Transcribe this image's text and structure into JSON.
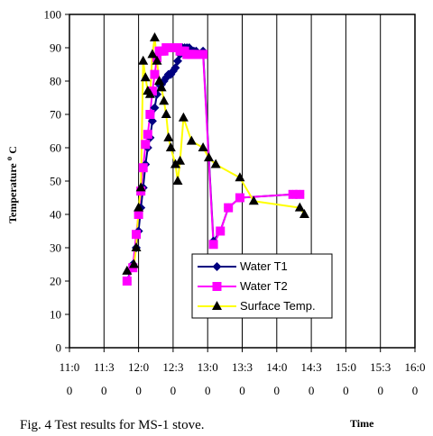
{
  "chart_data": {
    "type": "line",
    "caption": "Fig. 4 Test results for MS-1 stove.",
    "xlabel": "Time",
    "ylabel": "Temperature",
    "ylabel_sup": "o",
    "ylabel_unit": "C",
    "ylim": [
      0,
      100
    ],
    "yticks": [
      0,
      10,
      20,
      30,
      40,
      50,
      60,
      70,
      80,
      90,
      100
    ],
    "xlim": [
      "11:00",
      "16:00"
    ],
    "xtick_labels": [
      "11:00",
      "11:30",
      "12:00",
      "12:30",
      "13:00",
      "13:30",
      "14:00",
      "14:30",
      "15:00",
      "15:30",
      "16:00"
    ],
    "xtick_line1": [
      "11:0",
      "11:3",
      "12:0",
      "12:3",
      "13:0",
      "13:3",
      "14:0",
      "14:3",
      "15:0",
      "15:3",
      "16:0"
    ],
    "xtick_line2": [
      "0",
      "0",
      "0",
      "0",
      "0",
      "0",
      "0",
      "0",
      "0",
      "0",
      "0"
    ],
    "grid": "vertical",
    "legend_position": "lower-right",
    "series": [
      {
        "name": "Water T1",
        "color": "#000080",
        "marker": "diamond",
        "x": [
          "11:50",
          "11:55",
          "11:58",
          "12:00",
          "12:02",
          "12:04",
          "12:06",
          "12:08",
          "12:10",
          "12:12",
          "12:14",
          "12:16",
          "12:18",
          "12:20",
          "12:22",
          "12:24",
          "12:26",
          "12:28",
          "12:30",
          "12:32",
          "12:34",
          "12:36",
          "12:38",
          "12:40",
          "12:42",
          "12:44",
          "12:46",
          "12:48",
          "12:50",
          "12:56",
          "13:05",
          "13:11",
          "13:18",
          "13:28",
          "14:14",
          "14:20"
        ],
        "values": [
          20,
          25,
          30,
          35,
          42,
          48,
          55,
          60,
          63,
          68,
          72,
          76,
          79,
          79,
          80,
          81,
          82,
          82,
          83,
          84,
          86,
          88,
          90,
          90,
          90,
          90,
          89,
          89,
          89,
          89,
          32,
          35,
          42,
          45,
          46,
          46
        ]
      },
      {
        "name": "Water T2",
        "color": "#ff00ff",
        "marker": "square",
        "x": [
          "11:50",
          "11:55",
          "11:58",
          "12:00",
          "12:02",
          "12:04",
          "12:06",
          "12:08",
          "12:10",
          "12:12",
          "12:14",
          "12:16",
          "12:18",
          "12:20",
          "12:22",
          "12:24",
          "12:26",
          "12:28",
          "12:30",
          "12:32",
          "12:34",
          "12:36",
          "12:38",
          "12:40",
          "12:42",
          "12:44",
          "12:46",
          "12:48",
          "12:50",
          "12:56",
          "13:05",
          "13:11",
          "13:18",
          "13:28",
          "14:14",
          "14:20"
        ],
        "values": [
          20,
          24,
          34,
          40,
          47,
          54,
          61,
          64,
          70,
          77,
          82,
          87,
          89,
          89,
          89,
          90,
          90,
          90,
          90,
          90,
          90,
          89,
          89,
          89,
          88,
          88,
          88,
          88,
          88,
          88,
          31,
          35,
          42,
          45,
          46,
          46
        ]
      },
      {
        "name": "Surface Temp.",
        "color": "#ffff00",
        "marker": "triangle",
        "x": [
          "11:50",
          "11:56",
          "11:58",
          "12:00",
          "12:02",
          "12:04",
          "12:06",
          "12:08",
          "12:10",
          "12:12",
          "12:14",
          "12:16",
          "12:18",
          "12:20",
          "12:22",
          "12:24",
          "12:26",
          "12:28",
          "12:32",
          "12:34",
          "12:36",
          "12:39",
          "12:46",
          "12:56",
          "13:01",
          "13:07",
          "13:28",
          "13:40",
          "14:20",
          "14:24"
        ],
        "values": [
          23,
          25,
          30,
          42,
          48,
          86,
          81,
          77,
          76,
          88,
          93,
          86,
          80,
          78,
          74,
          70,
          63,
          60,
          55,
          50,
          56,
          69,
          62,
          60,
          57,
          55,
          51,
          44,
          42,
          40
        ]
      }
    ]
  }
}
